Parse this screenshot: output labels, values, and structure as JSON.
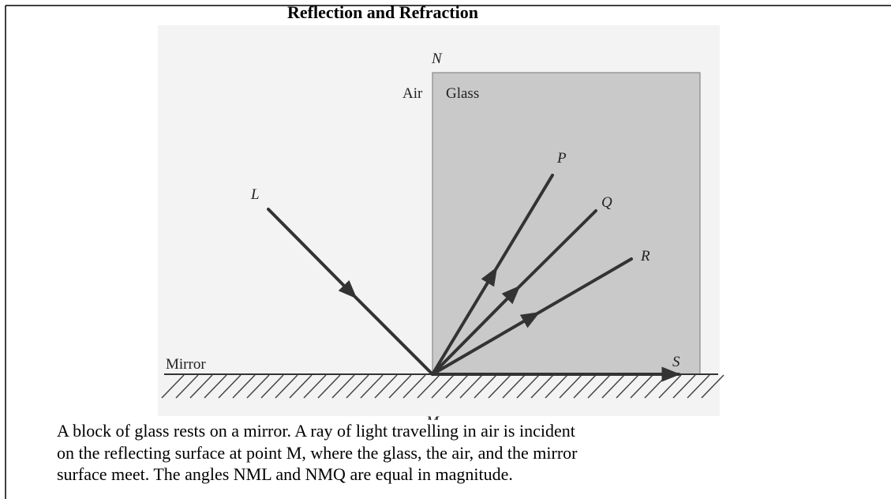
{
  "title": "Reflection and Refraction",
  "diagram": {
    "labels": {
      "N": "N",
      "air": "Air",
      "glass": "Glass",
      "L": "L",
      "P": "P",
      "Q": "Q",
      "R": "R",
      "S": "S",
      "mirror": "Mirror",
      "M": "M"
    }
  },
  "caption": [
    "A block of glass rests on a mirror. A ray of light travelling in air is incident",
    "on the reflecting surface at point M, where the glass, the air, and the mirror",
    "surface meet. The angles NML and NMQ are equal in magnitude."
  ]
}
